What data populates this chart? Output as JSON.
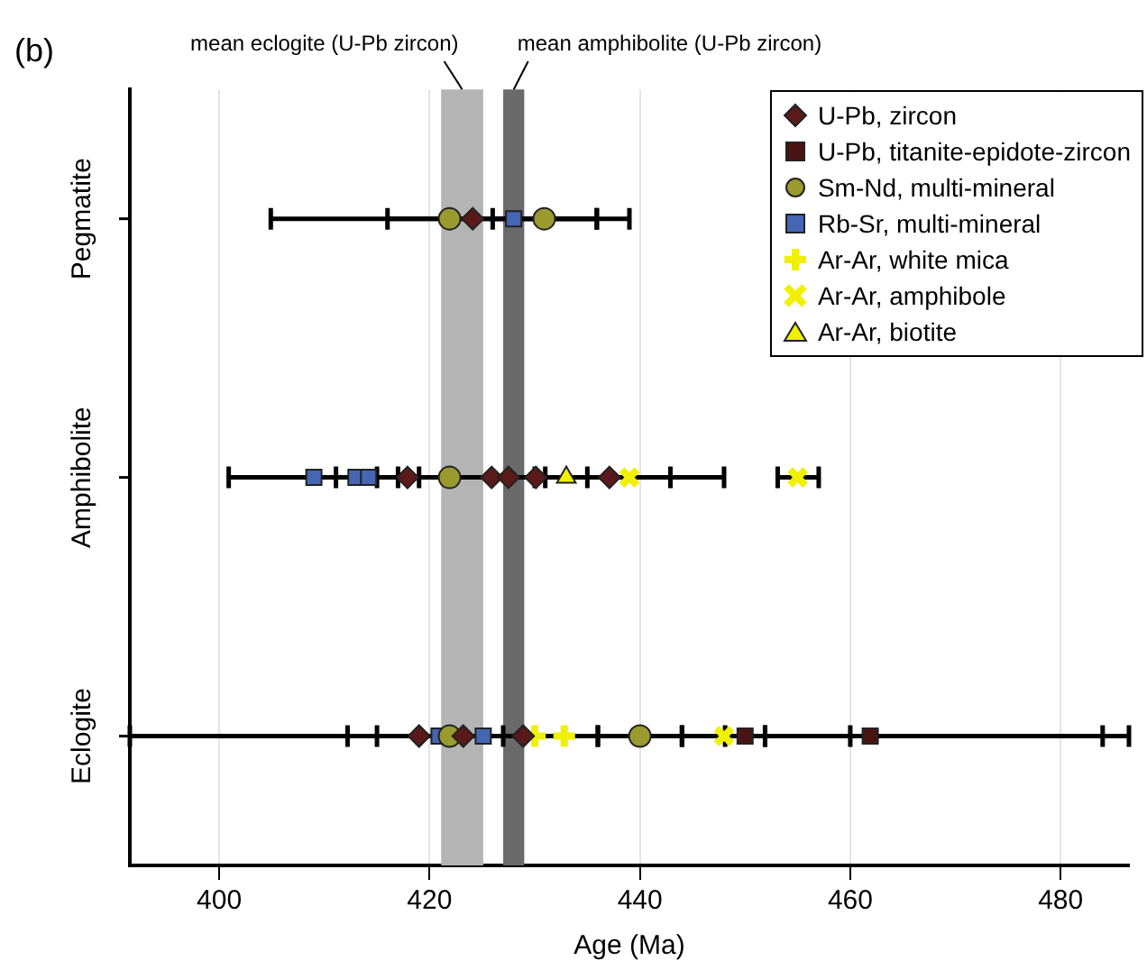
{
  "chart_data": {
    "type": "scatter",
    "orientation": "horizontal",
    "title": "(b)",
    "xlabel": "Age (Ma)",
    "categories": [
      "Pegmatite",
      "Amphibolite",
      "Eclogite"
    ],
    "xlim": [
      391.5,
      486.5
    ],
    "xticks": [
      400,
      420,
      440,
      460,
      480
    ],
    "grid": "x",
    "legend": "top right",
    "bands": [
      {
        "axis": "x",
        "from": 421.1,
        "to": 425.1,
        "label": "mean eclogite (U-Pb zircon)",
        "color": "#b4b4b4"
      },
      {
        "axis": "x",
        "from": 427.0,
        "to": 429.0,
        "label": "mean amphibolite (U-Pb zircon)",
        "color": "#6a6a6a"
      }
    ],
    "series": [
      {
        "name": "U-Pb, zircon",
        "color": "#5a1a1a",
        "marker": "diamond",
        "values": [
          424.1,
          417.9,
          425.9,
          427.5,
          430.1,
          437.1,
          419.0,
          423.2,
          428.9
        ],
        "x": [
          "Pegmatite",
          "Amphibolite",
          "Amphibolite",
          "Amphibolite",
          "Amphibolite",
          "Amphibolite",
          "Eclogite",
          "Eclogite",
          "Eclogite"
        ],
        "errors": [
          null,
          [
            417,
            419
          ],
          null,
          null,
          null,
          null,
          null,
          null,
          null
        ]
      },
      {
        "name": "U-Pb, titanite-epidote-zircon",
        "color": "#4a1414",
        "marker": "square",
        "values": [
          450.0,
          461.9
        ],
        "x": [
          "Eclogite",
          "Eclogite"
        ],
        "errors": [
          [
            448.1,
            451.9
          ],
          [
            460,
            484
          ]
        ]
      },
      {
        "name": "Sm-Nd, multi-mineral",
        "color": "#9a9a2e",
        "marker": "circle",
        "values": [
          421.9,
          430.9,
          421.9,
          421.9,
          440.0
        ],
        "x": [
          "Pegmatite",
          "Pegmatite",
          "Amphibolite",
          "Eclogite",
          "Eclogite"
        ],
        "errors": [
          [
            404.9,
            435.9
          ],
          [
            426,
            435.9
          ],
          [
            400.9,
            442.9
          ],
          [
            391.5,
            486.5
          ],
          [
            436,
            444
          ]
        ]
      },
      {
        "name": "Rb-Sr, multi-mineral",
        "color": "#4466b4",
        "marker": "square",
        "values": [
          428.0,
          409.0,
          413.0,
          414.2,
          420.9,
          425.1
        ],
        "x": [
          "Pegmatite",
          "Amphibolite",
          "Amphibolite",
          "Amphibolite",
          "Eclogite",
          "Eclogite"
        ],
        "errors": [
          [
            416,
            439
          ],
          null,
          [
            411.1,
            415
          ],
          null,
          [
            412.2,
            427
          ],
          [
            415,
            436
          ]
        ]
      },
      {
        "name": "Ar-Ar, white mica",
        "color": "#f0f000",
        "marker": "cross",
        "values": [
          430.0,
          432.8
        ],
        "x": [
          "Eclogite",
          "Eclogite"
        ]
      },
      {
        "name": "Ar-Ar, amphibole",
        "color": "#f0f000",
        "marker": "x",
        "values": [
          439.0,
          455.0,
          448.0
        ],
        "x": [
          "Amphibolite",
          "Amphibolite",
          "Eclogite"
        ],
        "errors": [
          [
            430,
            448
          ],
          [
            453.1,
            457
          ],
          [
            444,
            451.9
          ]
        ]
      },
      {
        "name": "Ar-Ar, biotite",
        "color": "#f0f000",
        "marker": "triangle",
        "values": [
          433.0
        ],
        "x": [
          "Amphibolite"
        ],
        "errors": [
          [
            431,
            435
          ]
        ]
      }
    ]
  }
}
